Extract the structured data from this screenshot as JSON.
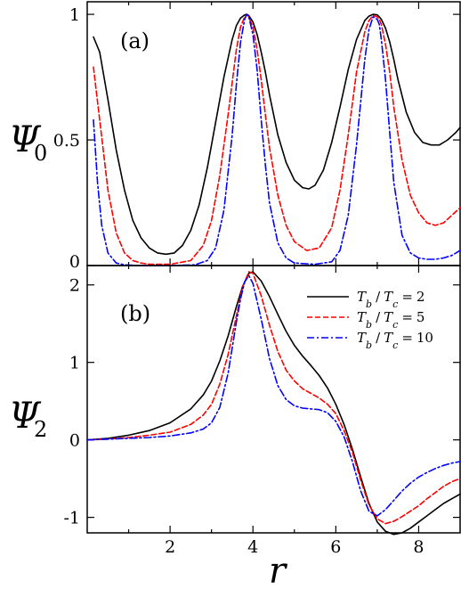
{
  "chart_data": [
    {
      "type": "line",
      "panel_label": "(a)",
      "ylabel": "Ψ",
      "ylabel_subscript": "0",
      "xlabel": "",
      "xlim": [
        0,
        9
      ],
      "ylim": [
        0,
        1.05
      ],
      "xticks": [
        "2",
        "4",
        "6",
        "8"
      ],
      "yticks": [
        "0",
        "0.5",
        "1"
      ],
      "series": [
        {
          "color": "#000000",
          "dash": "solid",
          "x": [
            0.15,
            0.3,
            0.5,
            0.7,
            0.9,
            1.1,
            1.3,
            1.5,
            1.7,
            1.9,
            2.1,
            2.3,
            2.5,
            2.7,
            2.9,
            3.1,
            3.3,
            3.5,
            3.6,
            3.7,
            3.8,
            3.85,
            3.9,
            4.0,
            4.1,
            4.2,
            4.3,
            4.4,
            4.6,
            4.8,
            5.0,
            5.2,
            5.35,
            5.5,
            5.7,
            5.9,
            6.1,
            6.3,
            6.5,
            6.7,
            6.8,
            6.9,
            7.0,
            7.05,
            7.1,
            7.2,
            7.3,
            7.4,
            7.5,
            7.7,
            7.9,
            8.1,
            8.3,
            8.5,
            8.7,
            8.9,
            9.0
          ],
          "y": [
            0.91,
            0.85,
            0.66,
            0.46,
            0.3,
            0.18,
            0.11,
            0.07,
            0.05,
            0.045,
            0.05,
            0.08,
            0.14,
            0.24,
            0.39,
            0.57,
            0.75,
            0.9,
            0.955,
            0.985,
            0.998,
            1.0,
            0.995,
            0.97,
            0.92,
            0.85,
            0.77,
            0.68,
            0.52,
            0.41,
            0.34,
            0.31,
            0.305,
            0.32,
            0.38,
            0.49,
            0.63,
            0.78,
            0.9,
            0.975,
            0.993,
            1.0,
            0.998,
            0.99,
            0.98,
            0.945,
            0.89,
            0.82,
            0.74,
            0.61,
            0.53,
            0.49,
            0.48,
            0.48,
            0.5,
            0.53,
            0.55
          ]
        },
        {
          "color": "#ff0000",
          "dash": "dashed",
          "x": [
            0.15,
            0.3,
            0.5,
            0.7,
            0.9,
            1.1,
            1.3,
            1.5,
            2.0,
            2.5,
            2.8,
            3.0,
            3.2,
            3.4,
            3.6,
            3.7,
            3.8,
            3.85,
            3.9,
            4.0,
            4.1,
            4.2,
            4.3,
            4.4,
            4.6,
            4.8,
            5.0,
            5.3,
            5.6,
            5.9,
            6.1,
            6.3,
            6.5,
            6.7,
            6.8,
            6.9,
            7.0,
            7.05,
            7.1,
            7.2,
            7.3,
            7.4,
            7.6,
            7.8,
            8.0,
            8.2,
            8.4,
            8.6,
            8.8,
            9.0
          ],
          "y": [
            0.79,
            0.58,
            0.3,
            0.13,
            0.05,
            0.02,
            0.01,
            0.005,
            0.005,
            0.02,
            0.08,
            0.18,
            0.36,
            0.6,
            0.86,
            0.95,
            0.99,
            1.0,
            0.99,
            0.95,
            0.86,
            0.74,
            0.6,
            0.47,
            0.28,
            0.16,
            0.095,
            0.06,
            0.07,
            0.15,
            0.3,
            0.52,
            0.77,
            0.93,
            0.975,
            0.995,
            0.99,
            0.98,
            0.96,
            0.88,
            0.77,
            0.63,
            0.42,
            0.28,
            0.21,
            0.17,
            0.16,
            0.17,
            0.2,
            0.23
          ]
        },
        {
          "color": "#0000ff",
          "dash": "dashdot",
          "x": [
            0.15,
            0.25,
            0.35,
            0.5,
            0.7,
            0.9,
            1.2,
            2.0,
            2.6,
            2.9,
            3.1,
            3.3,
            3.5,
            3.6,
            3.7,
            3.8,
            3.85,
            3.9,
            4.0,
            4.1,
            4.2,
            4.3,
            4.4,
            4.6,
            4.8,
            5.0,
            5.5,
            5.9,
            6.1,
            6.3,
            6.5,
            6.7,
            6.8,
            6.9,
            7.0,
            7.05,
            7.1,
            7.2,
            7.3,
            7.4,
            7.6,
            7.8,
            8.0,
            8.2,
            8.4,
            8.6,
            8.8,
            9.0
          ],
          "y": [
            0.58,
            0.33,
            0.16,
            0.05,
            0.01,
            0.003,
            0.0,
            0.0,
            0.003,
            0.02,
            0.07,
            0.22,
            0.52,
            0.72,
            0.89,
            0.98,
            1.0,
            0.99,
            0.92,
            0.78,
            0.58,
            0.4,
            0.25,
            0.09,
            0.03,
            0.01,
            0.005,
            0.015,
            0.06,
            0.2,
            0.48,
            0.82,
            0.94,
            0.99,
            0.98,
            0.96,
            0.9,
            0.74,
            0.53,
            0.33,
            0.12,
            0.05,
            0.03,
            0.025,
            0.025,
            0.03,
            0.04,
            0.06
          ]
        }
      ]
    },
    {
      "type": "line",
      "panel_label": "(b)",
      "ylabel": "Ψ",
      "ylabel_subscript": "2",
      "xlabel": "r",
      "xlim": [
        0,
        9
      ],
      "ylim": [
        -1.2,
        2.25
      ],
      "xticks": [
        "2",
        "4",
        "6",
        "8"
      ],
      "yticks": [
        "-1",
        "0",
        "1",
        "2"
      ],
      "legend": {
        "placement": "top-right",
        "entries": [
          {
            "ratio_value": "2",
            "color": "#000000",
            "dash": "solid"
          },
          {
            "ratio_value": "5",
            "color": "#ff0000",
            "dash": "dashed"
          },
          {
            "ratio_value": "10",
            "color": "#0000ff",
            "dash": "dashdot"
          }
        ],
        "label_parts": {
          "t": "T",
          "b": "b",
          "slash": "/",
          "c": "c",
          "eq": "="
        }
      },
      "series": [
        {
          "color": "#000000",
          "dash": "solid",
          "x": [
            0.0,
            0.5,
            1.0,
            1.5,
            2.0,
            2.5,
            2.8,
            3.0,
            3.2,
            3.4,
            3.6,
            3.75,
            3.9,
            4.0,
            4.2,
            4.4,
            4.6,
            4.8,
            5.0,
            5.2,
            5.4,
            5.6,
            5.8,
            6.0,
            6.2,
            6.4,
            6.6,
            6.8,
            7.0,
            7.2,
            7.4,
            7.6,
            7.8,
            8.0,
            8.2,
            8.4,
            8.6,
            8.8,
            9.0
          ],
          "y": [
            0.0,
            0.02,
            0.06,
            0.12,
            0.22,
            0.4,
            0.58,
            0.76,
            1.02,
            1.34,
            1.72,
            1.98,
            2.15,
            2.17,
            2.05,
            1.85,
            1.62,
            1.4,
            1.22,
            1.08,
            0.96,
            0.83,
            0.67,
            0.46,
            0.2,
            -0.12,
            -0.48,
            -0.82,
            -1.06,
            -1.18,
            -1.22,
            -1.2,
            -1.14,
            -1.06,
            -0.98,
            -0.9,
            -0.82,
            -0.76,
            -0.7
          ]
        },
        {
          "color": "#ff0000",
          "dash": "dashed",
          "x": [
            0.0,
            0.5,
            1.0,
            1.5,
            2.0,
            2.5,
            2.8,
            3.0,
            3.2,
            3.4,
            3.6,
            3.75,
            3.9,
            4.0,
            4.2,
            4.4,
            4.6,
            4.8,
            5.0,
            5.2,
            5.4,
            5.6,
            5.8,
            6.0,
            6.2,
            6.4,
            6.6,
            6.8,
            7.0,
            7.2,
            7.4,
            7.6,
            7.8,
            8.0,
            8.2,
            8.4,
            8.6,
            8.8,
            9.0
          ],
          "y": [
            0.0,
            0.01,
            0.03,
            0.06,
            0.1,
            0.2,
            0.32,
            0.46,
            0.72,
            1.1,
            1.6,
            1.97,
            2.17,
            2.15,
            1.86,
            1.48,
            1.14,
            0.9,
            0.76,
            0.66,
            0.6,
            0.54,
            0.46,
            0.34,
            0.12,
            -0.16,
            -0.52,
            -0.84,
            -1.02,
            -1.08,
            -1.05,
            -0.99,
            -0.92,
            -0.85,
            -0.76,
            -0.68,
            -0.6,
            -0.54,
            -0.5
          ]
        },
        {
          "color": "#0000ff",
          "dash": "dashdot",
          "x": [
            0.0,
            0.5,
            1.0,
            1.5,
            2.0,
            2.5,
            2.8,
            3.0,
            3.2,
            3.4,
            3.6,
            3.7,
            3.8,
            3.9,
            4.0,
            4.2,
            4.4,
            4.6,
            4.8,
            5.0,
            5.2,
            5.4,
            5.6,
            5.8,
            6.0,
            6.2,
            6.4,
            6.6,
            6.8,
            7.0,
            7.2,
            7.4,
            7.6,
            7.8,
            8.0,
            8.2,
            8.4,
            8.6,
            8.8,
            9.0
          ],
          "y": [
            0.0,
            0.01,
            0.02,
            0.03,
            0.05,
            0.09,
            0.14,
            0.22,
            0.42,
            0.86,
            1.52,
            1.82,
            2.04,
            2.12,
            2.02,
            1.56,
            1.05,
            0.7,
            0.52,
            0.44,
            0.41,
            0.4,
            0.39,
            0.35,
            0.24,
            0.04,
            -0.28,
            -0.66,
            -0.92,
            -0.98,
            -0.9,
            -0.78,
            -0.66,
            -0.56,
            -0.48,
            -0.42,
            -0.37,
            -0.33,
            -0.3,
            -0.28
          ]
        }
      ]
    }
  ]
}
